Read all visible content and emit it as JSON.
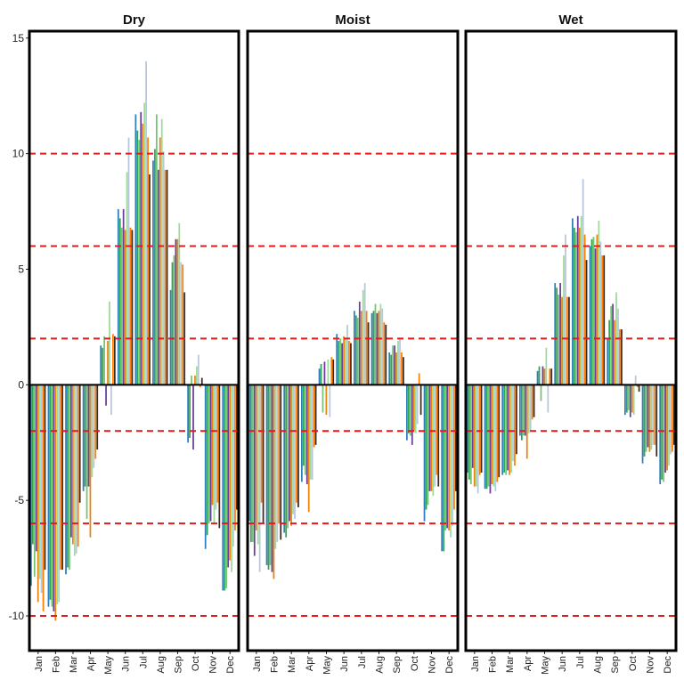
{
  "chart_data": {
    "type": "bar",
    "layout": "faceted",
    "panels": [
      "Dry",
      "Moist",
      "Wet"
    ],
    "categories": [
      "Jan",
      "Feb",
      "Mar",
      "Apr",
      "May",
      "Jun",
      "Jul",
      "Aug",
      "Sep",
      "Oct",
      "Nov",
      "Dec"
    ],
    "ylim": [
      -11.5,
      15.3
    ],
    "yticks": [
      -10,
      -5,
      0,
      5,
      10,
      15
    ],
    "reference_lines": [
      -10,
      -6,
      -2,
      2,
      6,
      10
    ],
    "reference_line_color": "#e41a1c",
    "bar_colors": [
      "#2c7fb8",
      "#31a354",
      "#74c476",
      "#6a3d9a",
      "#e6850e",
      "#a1d99b",
      "#b8c7d9",
      "#ff7f00",
      "#3d2b1f"
    ],
    "values": {
      "Dry": {
        "Jan": [
          -8.7,
          -6.9,
          -8.3,
          -7.2,
          -9.4,
          -8.4,
          -9.0,
          -9.8,
          -8.0
        ],
        "Feb": [
          -9.6,
          -9.3,
          -9.6,
          -9.8,
          -10.2,
          -9.5,
          -9.4,
          -8.0,
          -8.0
        ],
        "Mar": [
          -8.2,
          -7.9,
          -8.0,
          -6.6,
          -6.9,
          -7.4,
          -7.3,
          -7.0,
          -5.1
        ],
        "Apr": [
          -4.6,
          -4.4,
          -5.8,
          -4.4,
          -6.6,
          -4.0,
          -3.6,
          -3.2,
          -2.8
        ],
        "May": [
          1.7,
          1.6,
          2.1,
          -0.9,
          1.9,
          3.6,
          -1.3,
          2.2,
          2.1
        ],
        "Jun": [
          7.6,
          7.2,
          6.8,
          7.6,
          6.7,
          9.2,
          10.7,
          6.8,
          6.7
        ],
        "Jul": [
          11.7,
          11.0,
          10.6,
          11.8,
          11.3,
          12.2,
          14.0,
          10.7,
          9.1
        ],
        "Aug": [
          9.7,
          10.2,
          11.7,
          9.3,
          10.7,
          11.5,
          10.1,
          9.3,
          9.3
        ],
        "Sep": [
          4.1,
          5.3,
          5.6,
          6.3,
          6.3,
          7.0,
          5.3,
          5.2,
          4.0
        ],
        "Oct": [
          -2.5,
          -2.3,
          0.4,
          -2.8,
          0.4,
          0.8,
          1.3,
          -0.1,
          0.3
        ],
        "Nov": [
          -7.1,
          -6.5,
          -6.0,
          -5.9,
          -5.2,
          -6.0,
          -5.4,
          -5.1,
          -6.2
        ],
        "Dec": [
          -8.9,
          -8.9,
          -8.8,
          -7.9,
          -7.6,
          -8.1,
          -7.0,
          -6.3,
          -5.4
        ]
      },
      "Moist": {
        "Jan": [
          -5.9,
          -6.8,
          -6.8,
          -7.4,
          -6.3,
          -6.9,
          -8.1,
          -5.1,
          -6.0
        ],
        "Feb": [
          -7.8,
          -8.0,
          -7.8,
          -8.1,
          -8.4,
          -7.1,
          -6.8,
          -6.0,
          -6.7
        ],
        "Mar": [
          -6.4,
          -6.6,
          -6.2,
          -5.9,
          -6.1,
          -5.6,
          -5.8,
          -5.1,
          -5.3
        ],
        "Apr": [
          -4.2,
          -3.5,
          -3.9,
          -4.3,
          -5.5,
          -4.1,
          -4.1,
          -2.7,
          -2.6
        ],
        "May": [
          0.7,
          0.9,
          -1.2,
          1.0,
          -1.3,
          1.1,
          -1.4,
          1.2,
          1.1
        ],
        "Jun": [
          2.2,
          1.9,
          2.0,
          1.8,
          2.1,
          2.0,
          2.6,
          1.9,
          1.8
        ],
        "Jul": [
          3.2,
          3.0,
          2.9,
          3.6,
          3.2,
          4.1,
          4.4,
          3.2,
          2.7
        ],
        "Aug": [
          3.1,
          3.2,
          3.5,
          3.1,
          3.2,
          3.5,
          3.3,
          2.7,
          2.6
        ],
        "Sep": [
          1.4,
          1.3,
          1.7,
          1.7,
          1.4,
          1.9,
          2.0,
          1.4,
          1.2
        ],
        "Oct": [
          -2.4,
          -2.1,
          -2.2,
          -2.6,
          -2.0,
          -2.1,
          -1.7,
          0.5,
          -1.3
        ],
        "Nov": [
          -5.9,
          -5.4,
          -5.2,
          -4.6,
          -4.6,
          -4.8,
          -4.4,
          -3.9,
          -4.4
        ],
        "Dec": [
          -7.2,
          -7.2,
          -6.3,
          -6.2,
          -6.3,
          -6.6,
          -6.1,
          -5.4,
          -4.6
        ]
      },
      "Wet": {
        "Jan": [
          -3.8,
          -4.1,
          -4.3,
          -3.6,
          -4.4,
          -4.4,
          -4.7,
          -3.9,
          -3.8
        ],
        "Feb": [
          -4.5,
          -4.5,
          -4.4,
          -4.7,
          -4.3,
          -4.4,
          -4.6,
          -4.2,
          -4.0
        ],
        "Mar": [
          -3.9,
          -3.8,
          -3.9,
          -3.7,
          -3.9,
          -3.8,
          -3.3,
          -3.5,
          -3.0
        ],
        "Apr": [
          -2.2,
          -2.4,
          -2.2,
          -2.2,
          -3.2,
          -2.1,
          -2.0,
          -1.5,
          -1.4
        ],
        "May": [
          0.6,
          0.8,
          -0.7,
          0.8,
          0.7,
          1.6,
          -1.2,
          0.7,
          0.7
        ],
        "Jun": [
          4.4,
          4.2,
          3.9,
          4.4,
          3.8,
          5.6,
          6.5,
          3.8,
          3.8
        ],
        "Jul": [
          7.2,
          6.8,
          6.6,
          7.3,
          6.8,
          7.3,
          8.9,
          6.5,
          5.4
        ],
        "Aug": [
          6.0,
          6.3,
          6.4,
          5.9,
          6.5,
          7.1,
          6.2,
          5.6,
          5.6
        ],
        "Sep": [
          2.0,
          2.8,
          3.4,
          3.5,
          2.8,
          4.0,
          3.3,
          2.4,
          2.4
        ],
        "Oct": [
          -1.3,
          -1.2,
          -1.1,
          -1.4,
          -1.2,
          -1.3,
          0.4,
          -0.1,
          -0.3
        ],
        "Nov": [
          -3.4,
          -3.1,
          -2.9,
          -2.7,
          -2.9,
          -2.8,
          -2.6,
          -2.6,
          -3.1
        ],
        "Dec": [
          -4.3,
          -4.1,
          -4.2,
          -3.8,
          -3.7,
          -3.5,
          -3.0,
          -2.9,
          -2.6
        ]
      }
    }
  }
}
